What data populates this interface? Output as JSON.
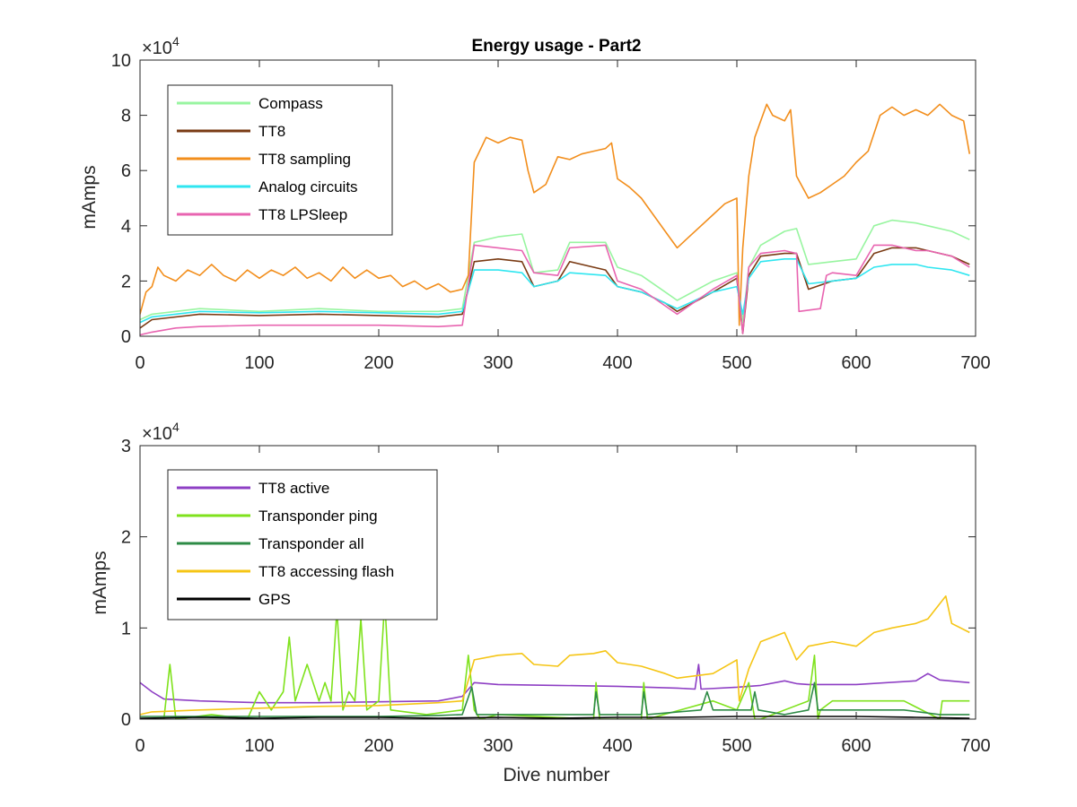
{
  "chart_data": [
    {
      "type": "line",
      "title": "Energy usage - Part2",
      "xlabel": "",
      "ylabel": "mAmps",
      "y_multiplier": "×10",
      "y_multiplier_exp": "4",
      "xlim": [
        0,
        700
      ],
      "ylim": [
        0,
        100000
      ],
      "xticks": [
        "0",
        "100",
        "200",
        "300",
        "400",
        "500",
        "600",
        "700"
      ],
      "yticks": [
        "0",
        "2",
        "4",
        "6",
        "8",
        "10"
      ],
      "legend_position": "top-left",
      "series": [
        {
          "name": "Compass",
          "color": "#98F5A0",
          "x": [
            0,
            10,
            50,
            100,
            150,
            200,
            250,
            270,
            280,
            300,
            320,
            330,
            350,
            360,
            390,
            400,
            420,
            440,
            450,
            480,
            500,
            505,
            510,
            520,
            540,
            550,
            560,
            580,
            600,
            615,
            630,
            650,
            660,
            680,
            695
          ],
          "y": [
            6000,
            8000,
            10000,
            9000,
            10000,
            9000,
            9000,
            10000,
            34000,
            36000,
            37000,
            23000,
            24000,
            34000,
            34000,
            25000,
            22000,
            16000,
            13000,
            20000,
            23000,
            5000,
            25000,
            33000,
            38000,
            39000,
            26000,
            27000,
            28000,
            40000,
            42000,
            41000,
            40000,
            38000,
            35000
          ]
        },
        {
          "name": "TT8",
          "color": "#7A3B14",
          "x": [
            0,
            10,
            50,
            100,
            150,
            200,
            250,
            270,
            280,
            300,
            320,
            330,
            350,
            360,
            390,
            400,
            420,
            440,
            450,
            480,
            500,
            505,
            510,
            520,
            540,
            550,
            560,
            580,
            600,
            615,
            630,
            650,
            660,
            680,
            695
          ],
          "y": [
            3000,
            6000,
            8000,
            7500,
            8000,
            7500,
            7000,
            8000,
            27000,
            28000,
            27000,
            18000,
            20000,
            27000,
            24000,
            18000,
            16000,
            12000,
            9000,
            16000,
            21000,
            1000,
            22000,
            29000,
            30000,
            30000,
            17000,
            20000,
            21000,
            30000,
            32000,
            32000,
            31000,
            29000,
            26000
          ]
        },
        {
          "name": "TT8 sampling",
          "color": "#F28E1C",
          "x": [
            0,
            5,
            10,
            15,
            20,
            30,
            40,
            50,
            60,
            70,
            80,
            90,
            100,
            110,
            120,
            130,
            140,
            150,
            160,
            170,
            180,
            190,
            200,
            210,
            220,
            230,
            240,
            250,
            260,
            270,
            275,
            280,
            290,
            300,
            310,
            320,
            325,
            330,
            340,
            350,
            360,
            370,
            380,
            390,
            395,
            400,
            410,
            420,
            430,
            440,
            450,
            460,
            470,
            480,
            490,
            500,
            502,
            505,
            510,
            515,
            520,
            525,
            530,
            540,
            545,
            550,
            560,
            570,
            580,
            590,
            600,
            610,
            620,
            630,
            640,
            650,
            660,
            670,
            680,
            690,
            695
          ],
          "y": [
            8000,
            16000,
            18000,
            25000,
            22000,
            20000,
            24000,
            22000,
            26000,
            22000,
            20000,
            24000,
            21000,
            24000,
            22000,
            25000,
            21000,
            23000,
            20000,
            25000,
            21000,
            24000,
            21000,
            22000,
            18000,
            20000,
            17000,
            19000,
            16000,
            17000,
            22000,
            63000,
            72000,
            70000,
            72000,
            71000,
            60000,
            52000,
            55000,
            65000,
            64000,
            66000,
            67000,
            68000,
            70000,
            57000,
            54000,
            50000,
            44000,
            38000,
            32000,
            36000,
            40000,
            44000,
            48000,
            50000,
            4000,
            32000,
            58000,
            72000,
            78000,
            84000,
            80000,
            78000,
            82000,
            58000,
            50000,
            52000,
            55000,
            58000,
            63000,
            67000,
            80000,
            83000,
            80000,
            82000,
            80000,
            84000,
            80000,
            78000,
            66000
          ]
        },
        {
          "name": "Analog circuits",
          "color": "#2FE6F0",
          "x": [
            0,
            10,
            50,
            100,
            150,
            200,
            250,
            270,
            280,
            300,
            320,
            330,
            350,
            360,
            390,
            400,
            420,
            440,
            450,
            480,
            500,
            505,
            510,
            520,
            540,
            550,
            560,
            580,
            600,
            615,
            630,
            650,
            660,
            680,
            695
          ],
          "y": [
            5000,
            7000,
            9000,
            8500,
            9000,
            8500,
            8000,
            9000,
            24000,
            24000,
            23000,
            18000,
            20000,
            23000,
            22000,
            18000,
            16000,
            12000,
            10000,
            16000,
            18000,
            8000,
            21000,
            27000,
            28000,
            28000,
            19000,
            20000,
            21000,
            25000,
            26000,
            26000,
            25000,
            24000,
            22000
          ]
        },
        {
          "name": "TT8 LPSleep",
          "color": "#E864B0",
          "x": [
            0,
            10,
            30,
            50,
            100,
            150,
            200,
            250,
            270,
            280,
            300,
            320,
            330,
            350,
            360,
            390,
            400,
            420,
            440,
            450,
            480,
            500,
            505,
            510,
            520,
            540,
            550,
            552,
            570,
            575,
            580,
            600,
            615,
            630,
            650,
            660,
            680,
            695
          ],
          "y": [
            500,
            1500,
            3000,
            3500,
            4000,
            4000,
            4000,
            3500,
            4000,
            33000,
            32000,
            31000,
            23000,
            22000,
            32000,
            33000,
            20000,
            17000,
            11000,
            8000,
            17000,
            22000,
            1000,
            25000,
            30000,
            31000,
            30000,
            9000,
            10000,
            22000,
            23000,
            22000,
            33000,
            33000,
            31000,
            31000,
            29000,
            25000
          ]
        }
      ]
    },
    {
      "type": "line",
      "title": "",
      "xlabel": "Dive number",
      "ylabel": "mAmps",
      "y_multiplier": "×10",
      "y_multiplier_exp": "4",
      "xlim": [
        0,
        700
      ],
      "ylim": [
        0,
        30000
      ],
      "xticks": [
        "0",
        "100",
        "200",
        "300",
        "400",
        "500",
        "600",
        "700"
      ],
      "yticks": [
        "0",
        "1",
        "2",
        "3"
      ],
      "legend_position": "top-left",
      "series": [
        {
          "name": "TT8 active",
          "color": "#8E3FC4",
          "x": [
            0,
            10,
            20,
            50,
            100,
            150,
            200,
            250,
            270,
            280,
            300,
            350,
            400,
            450,
            465,
            468,
            470,
            500,
            520,
            540,
            550,
            560,
            600,
            650,
            660,
            670,
            695
          ],
          "y": [
            4000,
            3000,
            2200,
            2000,
            1800,
            1800,
            1900,
            2000,
            2500,
            4000,
            3800,
            3700,
            3600,
            3400,
            3300,
            6000,
            3300,
            3500,
            3700,
            4200,
            3900,
            3800,
            3800,
            4200,
            5000,
            4300,
            4000
          ]
        },
        {
          "name": "Transponder ping",
          "color": "#7FE21C",
          "x": [
            0,
            20,
            25,
            30,
            60,
            90,
            100,
            110,
            120,
            125,
            130,
            140,
            150,
            155,
            160,
            165,
            170,
            175,
            180,
            185,
            190,
            200,
            205,
            210,
            240,
            270,
            275,
            280,
            285,
            300,
            380,
            382,
            385,
            420,
            422,
            425,
            480,
            500,
            510,
            515,
            520,
            560,
            565,
            568,
            570,
            580,
            600,
            640,
            670,
            672,
            695
          ],
          "y": [
            0,
            0,
            6000,
            0,
            500,
            0,
            3000,
            1000,
            3000,
            9000,
            2000,
            6000,
            2000,
            4000,
            2000,
            12000,
            1000,
            3000,
            2000,
            11000,
            1000,
            2000,
            13000,
            1000,
            500,
            1000,
            7000,
            1000,
            0,
            500,
            0,
            4000,
            0,
            0,
            4000,
            0,
            2000,
            1000,
            4000,
            0,
            0,
            2000,
            7000,
            0,
            1000,
            2000,
            2000,
            2000,
            0,
            2000,
            2000
          ]
        },
        {
          "name": "Transponder all",
          "color": "#2E8B46",
          "x": [
            0,
            50,
            100,
            150,
            200,
            250,
            270,
            278,
            282,
            300,
            380,
            382,
            385,
            420,
            422,
            425,
            470,
            475,
            480,
            500,
            512,
            515,
            518,
            540,
            560,
            565,
            568,
            580,
            600,
            640,
            670,
            695
          ],
          "y": [
            300,
            300,
            300,
            300,
            300,
            400,
            500,
            3500,
            500,
            500,
            500,
            3000,
            500,
            500,
            3000,
            500,
            1000,
            3000,
            1000,
            1000,
            1000,
            3000,
            1000,
            500,
            1000,
            4000,
            1000,
            1000,
            1000,
            1000,
            500,
            500
          ]
        },
        {
          "name": "TT8 accessing flash",
          "color": "#F5C515",
          "x": [
            0,
            10,
            50,
            100,
            150,
            200,
            250,
            270,
            280,
            300,
            320,
            330,
            350,
            360,
            380,
            390,
            400,
            420,
            440,
            450,
            480,
            500,
            502,
            510,
            520,
            540,
            550,
            560,
            580,
            600,
            615,
            630,
            650,
            660,
            675,
            680,
            695
          ],
          "y": [
            500,
            800,
            1000,
            1200,
            1400,
            1500,
            1800,
            2000,
            6500,
            7000,
            7200,
            6000,
            5800,
            7000,
            7200,
            7500,
            6200,
            5800,
            5000,
            4500,
            5000,
            6500,
            2000,
            5500,
            8500,
            9500,
            6500,
            8000,
            8500,
            8000,
            9500,
            10000,
            10500,
            11000,
            13500,
            10500,
            9500
          ]
        },
        {
          "name": "GPS",
          "color": "#000000",
          "x": [
            0,
            50,
            100,
            150,
            200,
            250,
            300,
            350,
            400,
            450,
            500,
            550,
            600,
            650,
            695
          ],
          "y": [
            100,
            200,
            100,
            200,
            200,
            100,
            200,
            100,
            200,
            200,
            300,
            300,
            300,
            200,
            100
          ]
        }
      ]
    }
  ]
}
